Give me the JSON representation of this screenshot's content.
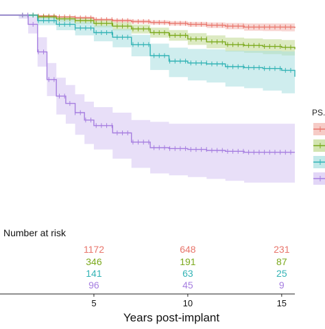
{
  "chart_data": {
    "type": "line",
    "subtype": "kaplan-meier survival curves with confidence bands",
    "xlabel": "Years post-implant",
    "x_ticks": [
      5,
      10,
      15
    ],
    "xlim": [
      0,
      15.7
    ],
    "ylim": [
      0,
      1
    ],
    "grid": false,
    "legend": {
      "title": "PS.",
      "position": "right",
      "entries": [
        "",
        "",
        "",
        ""
      ]
    },
    "series": [
      {
        "color": "#e8756b",
        "band_color": "#f2b5ae",
        "x": [
          0,
          1,
          2,
          3,
          4,
          5,
          6,
          7,
          8,
          9,
          10,
          11,
          12,
          13,
          14,
          15,
          15.7
        ],
        "y": [
          1.0,
          1.0,
          0.995,
          0.99,
          0.985,
          0.975,
          0.97,
          0.965,
          0.96,
          0.955,
          0.95,
          0.945,
          0.94,
          0.935,
          0.935,
          0.935,
          0.93
        ],
        "lower": [
          1.0,
          0.998,
          0.99,
          0.984,
          0.978,
          0.967,
          0.961,
          0.955,
          0.949,
          0.943,
          0.937,
          0.93,
          0.923,
          0.915,
          0.913,
          0.912,
          0.905
        ],
        "upper": [
          1.0,
          1.0,
          0.999,
          0.996,
          0.992,
          0.983,
          0.979,
          0.975,
          0.971,
          0.967,
          0.963,
          0.96,
          0.957,
          0.955,
          0.955,
          0.955,
          0.953
        ]
      },
      {
        "color": "#7ba91c",
        "band_color": "#bfd98f",
        "x": [
          0,
          1,
          2,
          3,
          4,
          5,
          6,
          7,
          8,
          9,
          10,
          11,
          12,
          13,
          14,
          15,
          15.7
        ],
        "y": [
          1.0,
          1.0,
          0.99,
          0.98,
          0.97,
          0.955,
          0.94,
          0.925,
          0.905,
          0.89,
          0.87,
          0.855,
          0.84,
          0.835,
          0.83,
          0.825,
          0.815
        ],
        "lower": [
          1.0,
          0.996,
          0.979,
          0.965,
          0.952,
          0.934,
          0.917,
          0.9,
          0.878,
          0.861,
          0.838,
          0.82,
          0.802,
          0.795,
          0.788,
          0.781,
          0.77
        ],
        "upper": [
          1.0,
          1.0,
          1.0,
          0.993,
          0.986,
          0.974,
          0.962,
          0.949,
          0.932,
          0.919,
          0.902,
          0.89,
          0.878,
          0.873,
          0.869,
          0.865,
          0.857
        ]
      },
      {
        "color": "#33b3b5",
        "band_color": "#a7dfe0",
        "x": [
          0,
          1,
          2,
          3,
          4,
          5,
          6,
          7,
          8,
          9,
          10,
          11,
          12,
          13,
          14,
          15,
          15.7
        ],
        "y": [
          1.0,
          1.0,
          0.97,
          0.95,
          0.93,
          0.905,
          0.88,
          0.84,
          0.78,
          0.75,
          0.74,
          0.735,
          0.72,
          0.715,
          0.71,
          0.7,
          0.665
        ],
        "lower": [
          1.0,
          0.99,
          0.945,
          0.918,
          0.89,
          0.858,
          0.825,
          0.776,
          0.702,
          0.663,
          0.645,
          0.634,
          0.612,
          0.603,
          0.59,
          0.575,
          0.52
        ],
        "upper": [
          1.0,
          1.0,
          0.99,
          0.978,
          0.962,
          0.944,
          0.924,
          0.893,
          0.845,
          0.823,
          0.816,
          0.814,
          0.807,
          0.806,
          0.806,
          0.803,
          0.785
        ]
      },
      {
        "color": "#a67ee0",
        "band_color": "#d6c4f3",
        "x": [
          0,
          1,
          1.5,
          2,
          2.5,
          3,
          3.5,
          4,
          4.5,
          5,
          6,
          7,
          8,
          9,
          10,
          11,
          12,
          13,
          14,
          15,
          15.7
        ],
        "y": [
          1.0,
          1.0,
          0.95,
          0.8,
          0.65,
          0.56,
          0.52,
          0.47,
          0.43,
          0.4,
          0.36,
          0.31,
          0.28,
          0.275,
          0.27,
          0.265,
          0.26,
          0.255,
          0.255,
          0.255,
          0.255
        ],
        "lower": [
          1.0,
          0.98,
          0.9,
          0.72,
          0.56,
          0.46,
          0.41,
          0.35,
          0.3,
          0.27,
          0.22,
          0.17,
          0.14,
          0.13,
          0.12,
          0.11,
          0.1,
          0.09,
          0.09,
          0.09,
          0.09
        ],
        "upper": [
          1.0,
          1.0,
          0.99,
          0.88,
          0.74,
          0.66,
          0.62,
          0.57,
          0.53,
          0.5,
          0.47,
          0.43,
          0.42,
          0.41,
          0.41,
          0.41,
          0.41,
          0.41,
          0.41,
          0.41,
          0.41
        ]
      }
    ],
    "risk_table": {
      "title": "Number at risk",
      "times": [
        5,
        10,
        15
      ],
      "rows": [
        {
          "color": "#e8756b",
          "values": [
            "1172",
            "648",
            "231"
          ]
        },
        {
          "color": "#7ba91c",
          "values": [
            "346",
            "191",
            "87"
          ]
        },
        {
          "color": "#33b3b5",
          "values": [
            "141",
            "63",
            "25"
          ]
        },
        {
          "color": "#a67ee0",
          "values": [
            "96",
            "45",
            "9"
          ]
        }
      ]
    }
  }
}
